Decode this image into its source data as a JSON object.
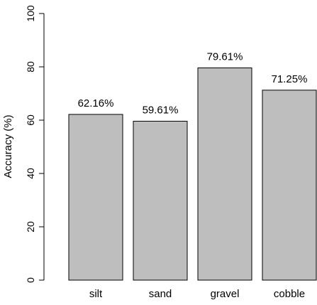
{
  "chart_data": {
    "type": "bar",
    "categories": [
      "silt",
      "sand",
      "gravel",
      "cobble"
    ],
    "values": [
      62.16,
      59.61,
      79.61,
      71.25
    ],
    "data_labels": [
      "62.16%",
      "59.61%",
      "79.61%",
      "71.25%"
    ],
    "title": "",
    "xlabel": "",
    "ylabel": "Accuracy (%)",
    "ylim": [
      0,
      100
    ],
    "yticks": [
      0,
      20,
      40,
      60,
      80,
      100
    ],
    "grid": false,
    "legend": "none",
    "bar_color": "#bebebe",
    "edge_color": "#000000"
  }
}
